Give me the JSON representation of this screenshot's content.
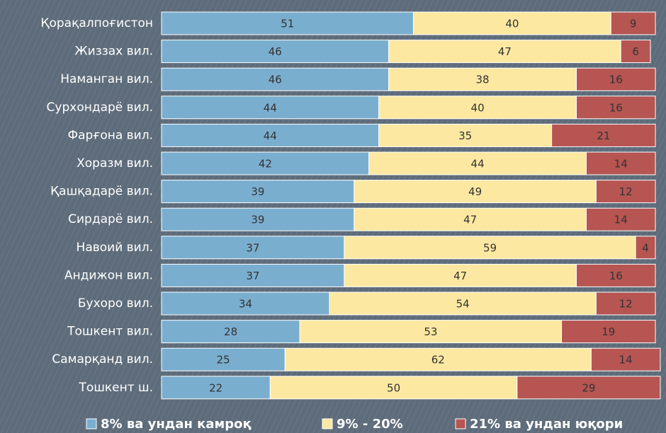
{
  "chart_data": {
    "type": "stacked_barh",
    "categories": [
      "Қорақалпоғистон",
      "Жиззах вил.",
      "Наманган вил.",
      "Сурхондарё вил.",
      "Фарғона вил.",
      "Хоразм вил.",
      "Қашқадарё вил.",
      "Сирдарё вил.",
      "Навоий вил.",
      "Андижон вил.",
      "Бухоро вил.",
      "Тошкент вил.",
      "Самарқанд вил.",
      "Тошкент ш."
    ],
    "series": [
      {
        "name": "8% ва ундан камроқ",
        "color": "#7aaecf",
        "values": [
          51,
          46,
          46,
          44,
          44,
          42,
          39,
          39,
          37,
          37,
          34,
          28,
          25,
          22
        ]
      },
      {
        "name": "9% - 20%",
        "color": "#fde8a1",
        "values": [
          40,
          47,
          38,
          40,
          35,
          44,
          49,
          47,
          59,
          47,
          54,
          53,
          62,
          50
        ]
      },
      {
        "name": "21% ва ундан юқори",
        "color": "#b65552",
        "values": [
          9,
          6,
          16,
          16,
          21,
          14,
          12,
          14,
          4,
          16,
          12,
          19,
          14,
          29
        ]
      }
    ],
    "xlim": [
      0,
      100
    ]
  }
}
